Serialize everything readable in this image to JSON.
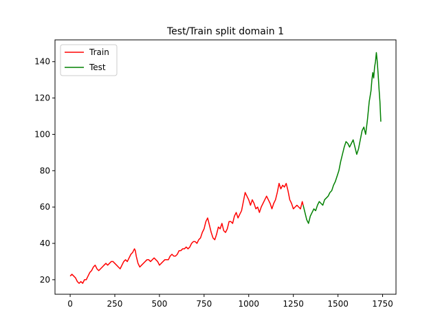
{
  "chart_data": {
    "type": "line",
    "title": "Test/Train split domain 1",
    "xlabel": "",
    "ylabel": "",
    "xlim": [
      -85,
      1825
    ],
    "ylim": [
      12,
      152
    ],
    "xticks": [
      0,
      250,
      500,
      750,
      1000,
      1250,
      1500,
      1750
    ],
    "yticks": [
      20,
      40,
      60,
      80,
      100,
      120,
      140
    ],
    "legend_position": "top-left",
    "grid": false,
    "series": [
      {
        "name": "Train",
        "color": "#ff0000",
        "x": [
          0,
          10,
          20,
          30,
          40,
          50,
          60,
          70,
          80,
          90,
          100,
          110,
          120,
          130,
          140,
          150,
          160,
          170,
          180,
          190,
          200,
          210,
          220,
          230,
          240,
          250,
          260,
          270,
          280,
          290,
          300,
          310,
          320,
          330,
          340,
          350,
          360,
          365,
          370,
          380,
          390,
          400,
          410,
          420,
          430,
          440,
          450,
          460,
          470,
          480,
          490,
          500,
          510,
          520,
          530,
          540,
          550,
          560,
          570,
          580,
          590,
          600,
          610,
          620,
          630,
          640,
          650,
          660,
          670,
          680,
          690,
          700,
          710,
          720,
          730,
          740,
          750,
          760,
          770,
          780,
          790,
          800,
          810,
          820,
          830,
          840,
          850,
          860,
          870,
          880,
          890,
          900,
          910,
          920,
          930,
          940,
          950,
          960,
          970,
          980,
          990,
          1000,
          1010,
          1020,
          1030,
          1040,
          1050,
          1060,
          1070,
          1080,
          1090,
          1100,
          1110,
          1120,
          1130,
          1140,
          1150,
          1160,
          1170,
          1180,
          1190,
          1200,
          1210,
          1220,
          1230,
          1240,
          1250,
          1260,
          1270,
          1280,
          1290,
          1300,
          1305
        ],
        "y": [
          22,
          23,
          22,
          21,
          19,
          18,
          19,
          18,
          20,
          20,
          22,
          24,
          25,
          27,
          28,
          26,
          25,
          26,
          27,
          28,
          29,
          28,
          29,
          30,
          30,
          29,
          28,
          27,
          26,
          28,
          30,
          31,
          30,
          32,
          34,
          35,
          37,
          36,
          33,
          29,
          27,
          28,
          29,
          30,
          31,
          31,
          30,
          31,
          32,
          31,
          30,
          28,
          29,
          30,
          31,
          31,
          31,
          33,
          34,
          33,
          33,
          34,
          36,
          36,
          37,
          37,
          38,
          37,
          38,
          40,
          41,
          41,
          40,
          42,
          43,
          46,
          48,
          52,
          54,
          50,
          46,
          43,
          42,
          45,
          49,
          48,
          51,
          47,
          46,
          48,
          52,
          52,
          51,
          55,
          57,
          54,
          56,
          58,
          63,
          68,
          66,
          64,
          61,
          64,
          62,
          59,
          60,
          57,
          60,
          62,
          64,
          66,
          64,
          62,
          59,
          62,
          64,
          68,
          73,
          70,
          72,
          71,
          73,
          69,
          64,
          62,
          59,
          60,
          61,
          60,
          59,
          63,
          61
        ]
      },
      {
        "name": "Test",
        "color": "#008000",
        "x": [
          1305,
          1315,
          1325,
          1335,
          1345,
          1355,
          1365,
          1375,
          1385,
          1395,
          1405,
          1415,
          1425,
          1435,
          1445,
          1455,
          1465,
          1475,
          1485,
          1495,
          1505,
          1515,
          1525,
          1535,
          1545,
          1555,
          1565,
          1575,
          1585,
          1595,
          1605,
          1615,
          1625,
          1635,
          1645,
          1655,
          1665,
          1675,
          1685,
          1690,
          1695,
          1700,
          1705,
          1710,
          1715,
          1720,
          1725,
          1730,
          1735,
          1740
        ],
        "y": [
          61,
          57,
          53,
          51,
          55,
          57,
          59,
          58,
          61,
          63,
          62,
          61,
          64,
          65,
          66,
          68,
          69,
          72,
          74,
          77,
          80,
          85,
          89,
          93,
          96,
          95,
          93,
          95,
          97,
          93,
          89,
          92,
          97,
          102,
          104,
          100,
          108,
          118,
          124,
          130,
          134,
          131,
          137,
          140,
          145,
          140,
          133,
          125,
          118,
          107
        ]
      }
    ]
  }
}
